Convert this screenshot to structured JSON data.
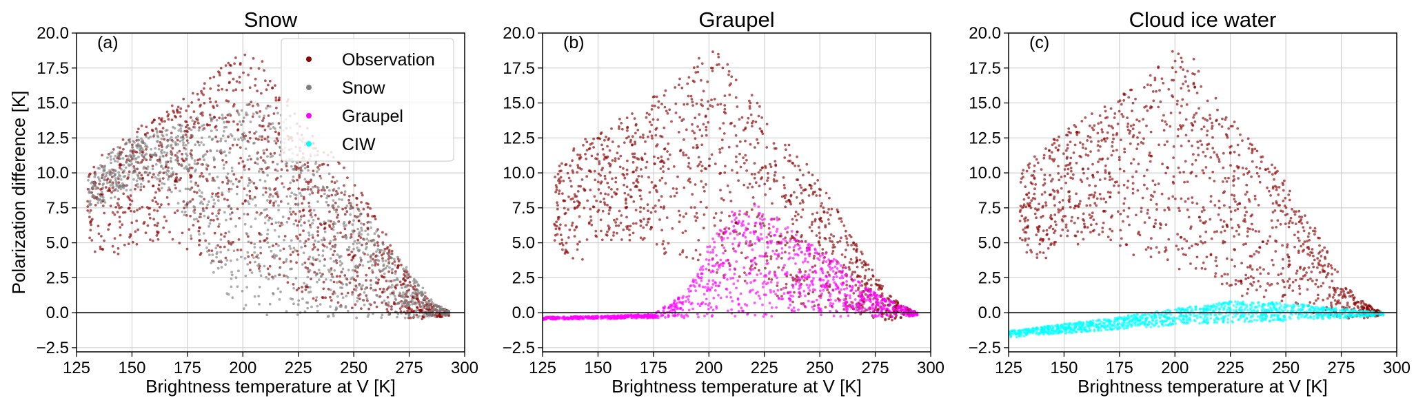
{
  "colors": {
    "observation": "#8b0000",
    "snow": "#808080",
    "graupel": "#ff00ff",
    "ciw": "#00ffff"
  },
  "chart_data": [
    {
      "type": "scatter",
      "panel_label": "(a)",
      "title": "Snow",
      "xlabel": "Brightness temperature at V [K]",
      "ylabel": "Polarization difference [K]",
      "xlim": [
        125,
        300
      ],
      "ylim": [
        -2.8,
        20.0
      ],
      "xticks": [
        "125",
        "150",
        "175",
        "200",
        "225",
        "250",
        "275",
        "300"
      ],
      "yticks": [
        "−2.5",
        "0.0",
        "2.5",
        "5.0",
        "7.5",
        "10.0",
        "12.5",
        "15.0",
        "17.5",
        "20.0"
      ],
      "grid": true,
      "legend": {
        "placement": "top-right",
        "entries": [
          {
            "label": "Observation",
            "color": "#8b0000"
          },
          {
            "label": "Snow",
            "color": "#808080"
          },
          {
            "label": "Graupel",
            "color": "#ff00ff"
          },
          {
            "label": "CIW",
            "color": "#00ffff"
          }
        ]
      },
      "series": [
        {
          "name": "Observation",
          "color": "#8b0000",
          "x": [
            130,
            140,
            150,
            160,
            170,
            180,
            190,
            200,
            210,
            220,
            230,
            240,
            250,
            260,
            270,
            280,
            285,
            290,
            293
          ],
          "y_min": [
            4.5,
            3.5,
            4.5,
            5.0,
            5.0,
            4.0,
            3.5,
            3.0,
            2.5,
            2.0,
            1.0,
            0.5,
            0.2,
            0.0,
            -0.3,
            -0.6,
            -0.5,
            -0.3,
            -0.2
          ],
          "y_max": [
            10.0,
            12.0,
            13.0,
            14.0,
            15.0,
            16.0,
            17.5,
            19.0,
            18.0,
            15.5,
            13.0,
            11.5,
            9.5,
            7.0,
            4.0,
            1.5,
            0.8,
            0.3,
            0.1
          ]
        },
        {
          "name": "Snow",
          "color": "#808080",
          "x": [
            130,
            140,
            150,
            160,
            170,
            180,
            190,
            200,
            210,
            220,
            230,
            240,
            250,
            260,
            270,
            280,
            285,
            290,
            293
          ],
          "y_min": [
            7.0,
            8.0,
            8.5,
            9.0,
            8.0,
            4.0,
            1.5,
            -0.1,
            -0.2,
            -0.3,
            -0.4,
            -0.4,
            -0.4,
            -0.4,
            -0.4,
            -0.4,
            -0.3,
            -0.3,
            -0.2
          ],
          "y_max": [
            9.5,
            11.5,
            12.5,
            13.0,
            13.5,
            14.0,
            14.5,
            15.0,
            15.0,
            14.0,
            12.0,
            10.0,
            8.0,
            6.0,
            4.0,
            2.0,
            1.0,
            0.4,
            0.1
          ]
        }
      ]
    },
    {
      "type": "scatter",
      "panel_label": "(b)",
      "title": "Graupel",
      "xlabel": "Brightness temperature at V [K]",
      "xlim": [
        125,
        300
      ],
      "ylim": [
        -2.8,
        20.0
      ],
      "xticks": [
        "125",
        "150",
        "175",
        "200",
        "225",
        "250",
        "275",
        "300"
      ],
      "yticks": [
        "−2.5",
        "0.0",
        "2.5",
        "5.0",
        "7.5",
        "10.0",
        "12.5",
        "15.0",
        "17.5",
        "20.0"
      ],
      "grid": true,
      "series": [
        {
          "name": "Observation",
          "color": "#8b0000",
          "x": [
            130,
            140,
            150,
            160,
            170,
            180,
            190,
            200,
            210,
            220,
            230,
            240,
            250,
            260,
            270,
            280,
            285,
            290,
            293
          ],
          "y_min": [
            4.5,
            3.5,
            4.5,
            5.0,
            5.0,
            4.0,
            3.5,
            3.0,
            2.5,
            2.0,
            1.0,
            0.5,
            0.2,
            0.0,
            -0.3,
            -0.6,
            -0.5,
            -0.3,
            -0.2
          ],
          "y_max": [
            10.0,
            12.0,
            13.0,
            14.0,
            15.0,
            16.0,
            17.5,
            19.0,
            18.0,
            15.5,
            13.0,
            11.5,
            9.5,
            7.0,
            4.0,
            1.5,
            0.8,
            0.3,
            0.1
          ]
        },
        {
          "name": "Graupel",
          "color": "#ff00ff",
          "x": [
            125,
            150,
            175,
            190,
            200,
            210,
            220,
            230,
            240,
            250,
            260,
            270,
            280,
            290,
            294
          ],
          "y_min": [
            -0.5,
            -0.45,
            -0.4,
            -0.4,
            -0.35,
            -0.35,
            -0.3,
            -0.3,
            -0.3,
            -0.3,
            -0.3,
            -0.3,
            -0.3,
            -0.3,
            -0.2
          ],
          "y_max": [
            -0.3,
            -0.25,
            -0.1,
            1.5,
            5.0,
            7.5,
            8.0,
            7.0,
            5.5,
            4.5,
            3.5,
            2.0,
            1.0,
            0.3,
            0.0
          ]
        }
      ]
    },
    {
      "type": "scatter",
      "panel_label": "(c)",
      "title": "Cloud ice water",
      "xlabel": "Brightness temperature at V [K]",
      "xlim": [
        125,
        300
      ],
      "ylim": [
        -2.8,
        20.0
      ],
      "xticks": [
        "125",
        "150",
        "175",
        "200",
        "225",
        "250",
        "275",
        "300"
      ],
      "yticks": [
        "−2.5",
        "0.0",
        "2.5",
        "5.0",
        "7.5",
        "10.0",
        "12.5",
        "15.0",
        "17.5",
        "20.0"
      ],
      "grid": true,
      "series": [
        {
          "name": "Observation",
          "color": "#8b0000",
          "x": [
            130,
            140,
            150,
            160,
            170,
            180,
            190,
            200,
            210,
            220,
            230,
            240,
            250,
            260,
            270,
            280,
            285,
            290,
            293
          ],
          "y_min": [
            4.5,
            3.5,
            4.5,
            5.0,
            5.0,
            4.0,
            3.5,
            3.0,
            2.5,
            2.0,
            1.0,
            0.5,
            0.2,
            0.0,
            -0.3,
            -0.6,
            -0.5,
            -0.3,
            -0.2
          ],
          "y_max": [
            10.0,
            12.0,
            13.0,
            14.0,
            15.0,
            16.0,
            17.5,
            19.0,
            18.0,
            15.5,
            13.0,
            11.5,
            9.5,
            7.0,
            4.0,
            1.5,
            0.8,
            0.3,
            0.1
          ]
        },
        {
          "name": "CIW",
          "color": "#00ffff",
          "x": [
            125,
            150,
            175,
            200,
            225,
            250,
            275,
            294
          ],
          "y_min": [
            -1.8,
            -1.5,
            -1.2,
            -0.9,
            -0.7,
            -0.6,
            -0.4,
            -0.2
          ],
          "y_max": [
            -1.3,
            -0.8,
            -0.3,
            0.3,
            0.8,
            0.7,
            0.3,
            0.0
          ]
        }
      ]
    }
  ]
}
